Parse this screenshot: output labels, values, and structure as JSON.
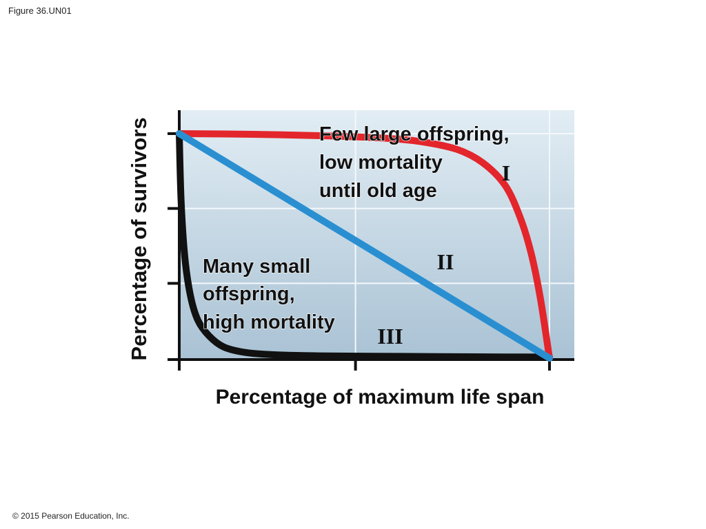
{
  "figure_label": "Figure 36.UN01",
  "copyright": "© 2015 Pearson Education, Inc.",
  "colors": {
    "type_I": "#e3262c",
    "type_II": "#2a8fd1",
    "type_III": "#111111"
  },
  "chart_data": {
    "type": "line",
    "title": "",
    "xlabel": "Percentage of maximum life span",
    "ylabel": "Percentage of survivors",
    "xlim": [
      0,
      100
    ],
    "ylim": [
      0,
      100
    ],
    "grid": true,
    "series": [
      {
        "name": "I",
        "x": [
          0,
          20,
          40,
          55,
          65,
          75,
          82,
          88,
          92,
          95,
          97.5,
          100
        ],
        "y": [
          100,
          99.7,
          99,
          98,
          96.5,
          93,
          87,
          77,
          63,
          47,
          27,
          0
        ]
      },
      {
        "name": "II",
        "x": [
          0,
          100
        ],
        "y": [
          100,
          0
        ]
      },
      {
        "name": "III",
        "x": [
          0,
          0.5,
          1.5,
          3,
          5,
          8,
          12,
          18,
          26,
          40,
          60,
          80,
          100
        ],
        "y": [
          100,
          70,
          45,
          28,
          17,
          10,
          5,
          2.5,
          1.5,
          1,
          0.8,
          0.6,
          0.5
        ]
      }
    ],
    "annotations": {
      "type_I": [
        "Few large offspring,",
        "low mortality",
        "until old age"
      ],
      "type_III": [
        "Many small",
        "offspring,",
        "high mortality"
      ]
    }
  }
}
